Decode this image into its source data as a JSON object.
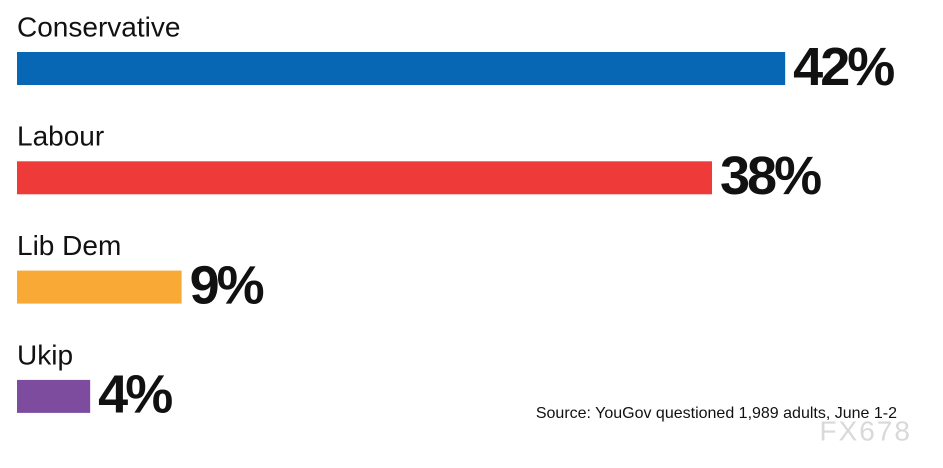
{
  "chart_data": {
    "type": "bar",
    "orientation": "horizontal",
    "categories": [
      "Conservative",
      "Labour",
      "Lib Dem",
      "Ukip"
    ],
    "values": [
      42,
      38,
      9,
      4
    ],
    "value_labels": [
      "42%",
      "38%",
      "9%",
      "4%"
    ],
    "colors": [
      "#0767b4",
      "#ee3b3a",
      "#f9a935",
      "#7d4c9e"
    ],
    "source": "Source: YouGov questioned 1,989 adults, June 1-2",
    "watermark": "FX678"
  }
}
